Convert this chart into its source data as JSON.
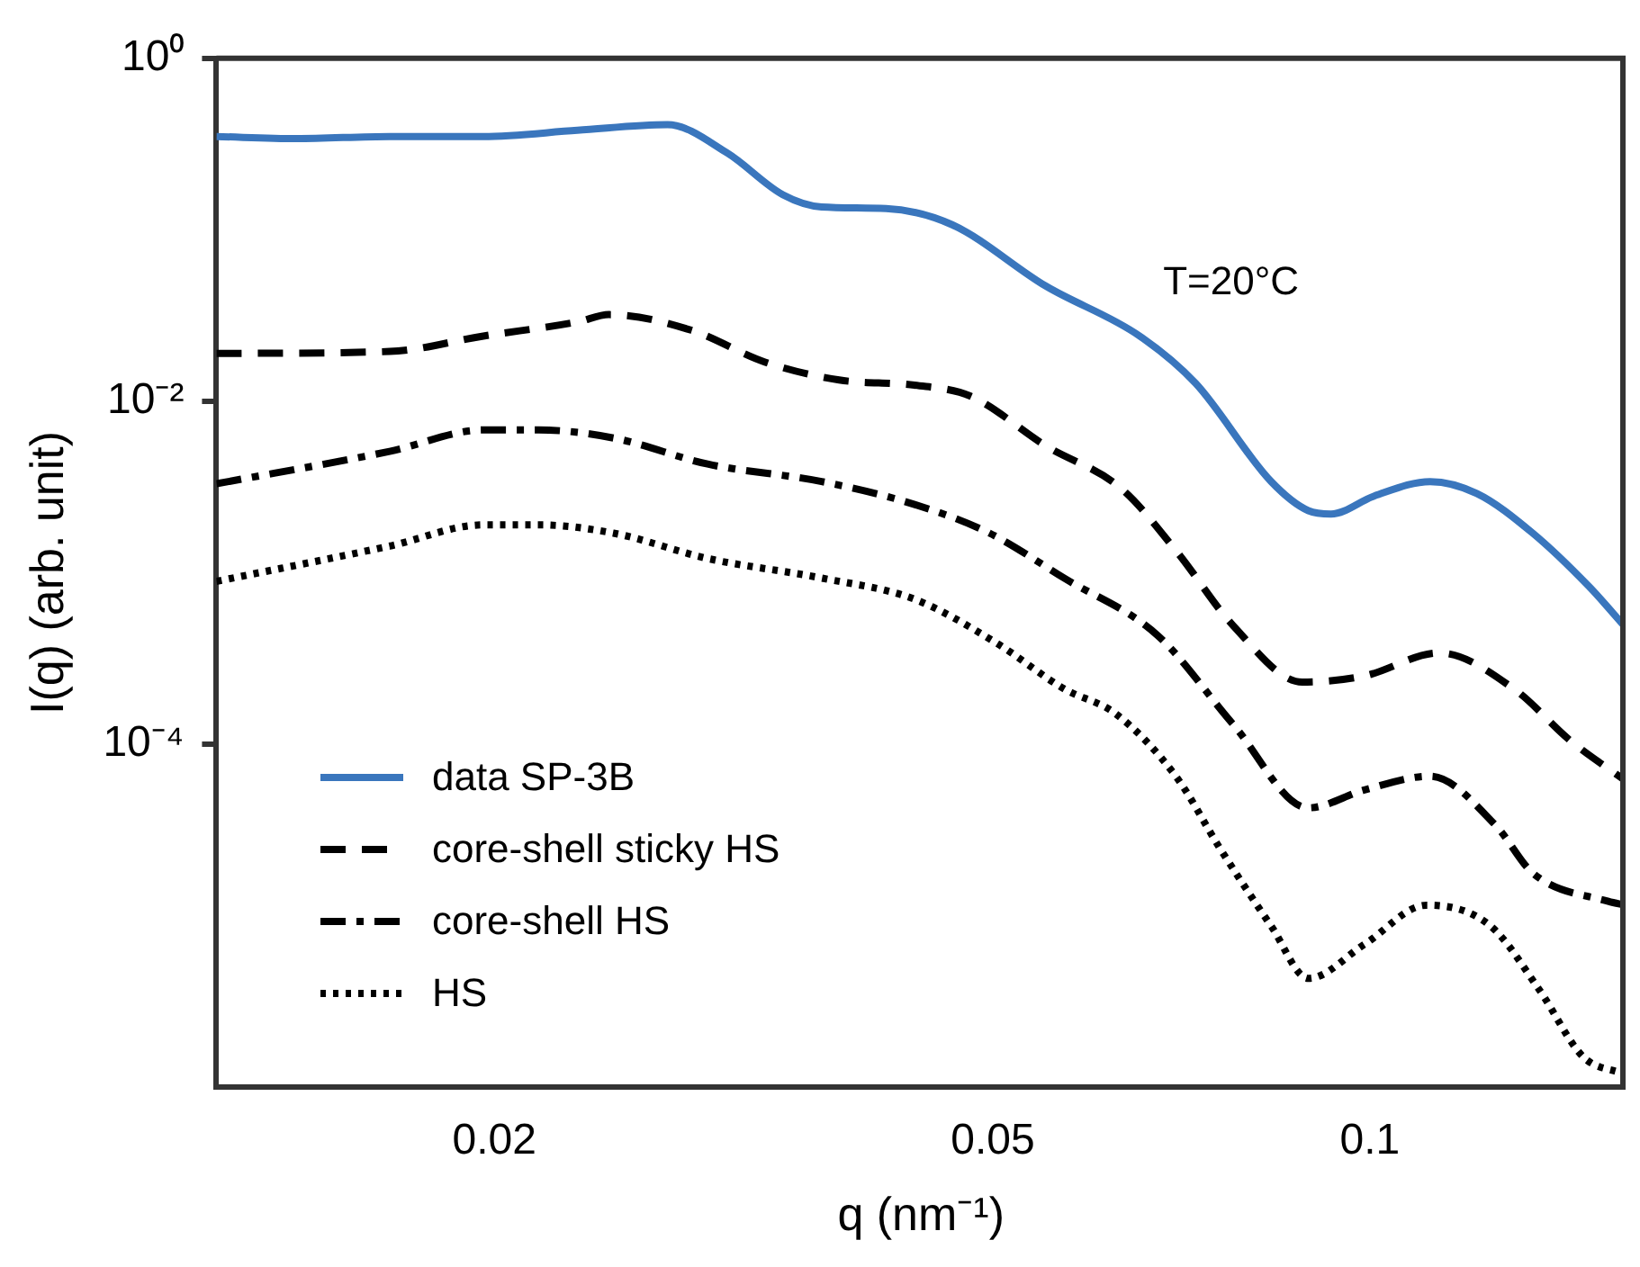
{
  "chart_data": {
    "type": "line",
    "xlabel": "q (nm⁻¹)",
    "ylabel": "I(q) (arb. unit)",
    "annotations": [
      "T=20°C"
    ],
    "log": "xy",
    "xlim": [
      0.012,
      0.16
    ],
    "ylim": [
      1e-06,
      1
    ],
    "xticks": [
      0.02,
      0.05,
      0.1
    ],
    "yticks": [
      {
        "value": 1,
        "label": "10⁰"
      },
      {
        "value": 0.01,
        "label": "10⁻²"
      },
      {
        "value": 0.0001,
        "label": "10⁻⁴"
      }
    ],
    "legend": "bottom left",
    "grid": false,
    "marker": "none",
    "series": [
      {
        "name": "data SP-3B",
        "color": "#3a76bd",
        "line_style": "solid",
        "x": [
          0.012,
          0.0139,
          0.0165,
          0.0196,
          0.0233,
          0.0275,
          0.0307,
          0.034,
          0.0365,
          0.0411,
          0.0464,
          0.0551,
          0.0655,
          0.0726,
          0.0834,
          0.0893,
          0.0931,
          0.1008,
          0.1117,
          0.1217,
          0.1349,
          0.1496,
          0.16
        ],
        "values": [
          0.35,
          0.34,
          0.35,
          0.35,
          0.38,
          0.41,
          0.28,
          0.16,
          0.136,
          0.133,
          0.107,
          0.047,
          0.024,
          0.0127,
          0.0034,
          0.0023,
          0.0022,
          0.0028,
          0.0034,
          0.0029,
          0.0017,
          0.00083,
          0.00048
        ]
      },
      {
        "name": "core-shell sticky HS",
        "color": "#000000",
        "line_style": "dashed",
        "x": [
          0.012,
          0.0165,
          0.0196,
          0.0233,
          0.0247,
          0.0287,
          0.0329,
          0.0377,
          0.0433,
          0.048,
          0.0551,
          0.0633,
          0.0701,
          0.0778,
          0.0883,
          0.099,
          0.1136,
          0.1303,
          0.1445,
          0.16
        ],
        "values": [
          0.019,
          0.0195,
          0.024,
          0.029,
          0.032,
          0.026,
          0.0169,
          0.0133,
          0.0124,
          0.0107,
          0.0055,
          0.0031,
          0.00133,
          0.00049,
          0.00023,
          0.00025,
          0.00034,
          0.00021,
          0.000105,
          6.1e-05
        ]
      },
      {
        "name": "core-shell HS",
        "color": "#000000",
        "line_style": "dashdot",
        "x": [
          0.012,
          0.0165,
          0.0196,
          0.0217,
          0.0249,
          0.0296,
          0.0365,
          0.0433,
          0.0497,
          0.057,
          0.0677,
          0.0778,
          0.0893,
          0.099,
          0.1117,
          0.126,
          0.1349,
          0.155,
          0.16
        ],
        "values": [
          0.0033,
          0.0051,
          0.0068,
          0.0068,
          0.0061,
          0.0043,
          0.0034,
          0.0025,
          0.0017,
          0.00093,
          0.00043,
          0.00013,
          4.25e-05,
          5.4e-05,
          6.5e-05,
          3.36e-05,
          1.77e-05,
          1.21e-05,
          1.15e-05
        ]
      },
      {
        "name": "HS",
        "color": "#000000",
        "line_style": "dotted",
        "x": [
          0.012,
          0.0165,
          0.0196,
          0.0217,
          0.0249,
          0.0296,
          0.0365,
          0.0433,
          0.0503,
          0.057,
          0.0627,
          0.0701,
          0.0759,
          0.0834,
          0.0893,
          0.099,
          0.111,
          0.1248,
          0.1365,
          0.148,
          0.159
        ],
        "values": [
          0.00089,
          0.00143,
          0.0019,
          0.0019,
          0.0017,
          0.00121,
          0.00093,
          0.0007,
          0.00039,
          0.00021,
          0.00015,
          6.4e-05,
          2.47e-05,
          8.7e-06,
          4.3e-06,
          6.8e-06,
          1.15e-05,
          8.7e-06,
          3.7e-06,
          1.5e-06,
          1.2e-06
        ]
      }
    ]
  }
}
